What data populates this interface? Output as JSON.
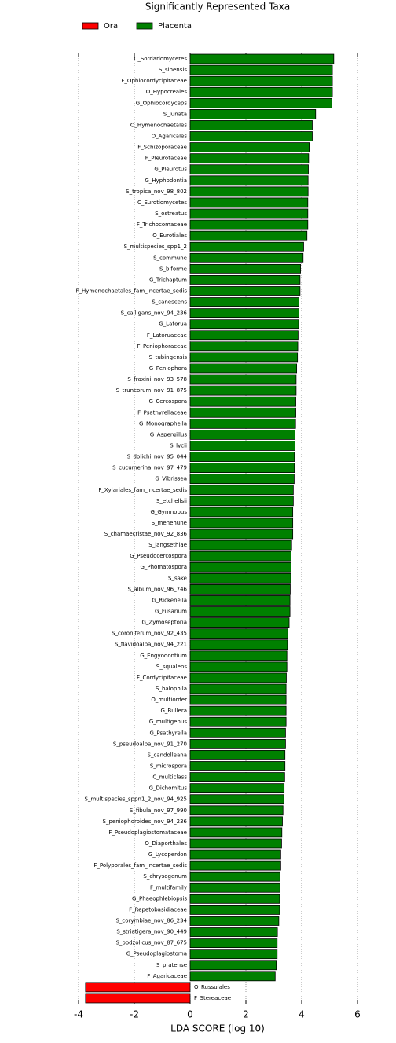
{
  "chart_data": {
    "type": "bar",
    "orientation": "horizontal",
    "title": "Significantly Represented Taxa",
    "xlabel": "LDA SCORE (log 10)",
    "xlim": [
      -4,
      6
    ],
    "xticks": [
      -4,
      -2,
      0,
      2,
      4,
      6
    ],
    "grid": true,
    "legend": "top left",
    "categories": [
      "C_Sordariomycetes",
      "S_sinensis",
      "F_Ophiocordycipitaceae",
      "O_Hypocreales",
      "G_Ophiocordyceps",
      "S_lunata",
      "O_Hymenochaetales",
      "O_Agaricales",
      "F_Schizoporaceae",
      "F_Pleurotaceae",
      "G_Pleurotus",
      "G_Hyphodontia",
      "S_tropica_nov_98_802",
      "C_Eurotiomycetes",
      "S_ostreatus",
      "F_Trichocomaceae",
      "O_Eurotiales",
      "S_multispecies_spp1_2",
      "S_commune",
      "S_biforme",
      "G_Trichaptum",
      "F_Hymenochaetales_fam_Incertae_sedis",
      "S_canescens",
      "S_calligans_nov_94_236",
      "G_Latorua",
      "F_Latoruaceae",
      "F_Peniophoraceae",
      "S_tubingensis",
      "G_Peniophora",
      "S_fraxini_nov_93_578",
      "S_truncorum_nov_91_875",
      "G_Cercospora",
      "F_Psathyrellaceae",
      "G_Monographella",
      "G_Aspergillus",
      "S_lycii",
      "S_dolichi_nov_95_044",
      "S_cucumerina_nov_97_479",
      "G_Vibrissea",
      "F_Xylariales_fam_Incertae_sedis",
      "S_etchellsii",
      "G_Gymnopus",
      "S_menehune",
      "S_chamaecristae_nov_92_836",
      "S_langsethiae",
      "G_Pseudocercospora",
      "G_Phomatospora",
      "S_sake",
      "S_album_nov_96_746",
      "G_Rickenella",
      "G_Fusarium",
      "G_Zymoseptoria",
      "S_coroniferum_nov_92_435",
      "S_flavidoalba_nov_94_221",
      "G_Engyodontium",
      "S_squalens",
      "F_Cordycipitaceae",
      "S_halophila",
      "O_multiorder",
      "G_Bullera",
      "G_multigenus",
      "G_Psathyrella",
      "S_pseudoalba_nov_91_270",
      "S_candolleana",
      "S_microspora",
      "C_multiclass",
      "G_Dichomitus",
      "S_multispecies_sppn1_2_nov_94_925",
      "S_fibula_nov_97_990",
      "S_peniophoroides_nov_94_236",
      "F_Pseudoplagiostomataceae",
      "O_Diaporthales",
      "G_Lycoperdon",
      "F_Polyporales_fam_Incertae_sedis",
      "S_chrysogenum",
      "F_multifamily",
      "G_Phaeophlebiopsis",
      "F_Repetobasidiaceae",
      "S_corymbiae_nov_86_234",
      "S_striatigera_nov_90_449",
      "S_podzolicus_nov_87_675",
      "G_Pseudoplagiostoma",
      "S_pratense",
      "F_Agaricaceae",
      "O_Russulales",
      "F_Stereaceae"
    ],
    "series": [
      {
        "name": "Oral",
        "color": "#ff0000",
        "values": [
          null,
          null,
          null,
          null,
          null,
          null,
          null,
          null,
          null,
          null,
          null,
          null,
          null,
          null,
          null,
          null,
          null,
          null,
          null,
          null,
          null,
          null,
          null,
          null,
          null,
          null,
          null,
          null,
          null,
          null,
          null,
          null,
          null,
          null,
          null,
          null,
          null,
          null,
          null,
          null,
          null,
          null,
          null,
          null,
          null,
          null,
          null,
          null,
          null,
          null,
          null,
          null,
          null,
          null,
          null,
          null,
          null,
          null,
          null,
          null,
          null,
          null,
          null,
          null,
          null,
          null,
          null,
          null,
          null,
          null,
          null,
          null,
          null,
          null,
          null,
          null,
          null,
          null,
          null,
          null,
          null,
          null,
          null,
          null,
          -3.75,
          -3.75
        ]
      },
      {
        "name": "Placenta",
        "color": "#008000",
        "values": [
          5.15,
          5.1,
          5.1,
          5.1,
          5.08,
          4.5,
          4.38,
          4.38,
          4.27,
          4.25,
          4.24,
          4.23,
          4.23,
          4.22,
          4.22,
          4.22,
          4.19,
          4.07,
          4.05,
          3.96,
          3.94,
          3.94,
          3.9,
          3.9,
          3.89,
          3.87,
          3.86,
          3.85,
          3.82,
          3.8,
          3.8,
          3.79,
          3.79,
          3.78,
          3.76,
          3.76,
          3.74,
          3.74,
          3.73,
          3.7,
          3.7,
          3.68,
          3.68,
          3.68,
          3.64,
          3.62,
          3.62,
          3.61,
          3.59,
          3.58,
          3.58,
          3.55,
          3.5,
          3.49,
          3.47,
          3.47,
          3.45,
          3.44,
          3.44,
          3.44,
          3.44,
          3.42,
          3.42,
          3.4,
          3.4,
          3.39,
          3.37,
          3.36,
          3.33,
          3.31,
          3.29,
          3.28,
          3.25,
          3.25,
          3.22,
          3.22,
          3.21,
          3.21,
          3.18,
          3.13,
          3.12,
          3.12,
          3.09,
          3.05,
          null,
          null
        ]
      }
    ]
  }
}
